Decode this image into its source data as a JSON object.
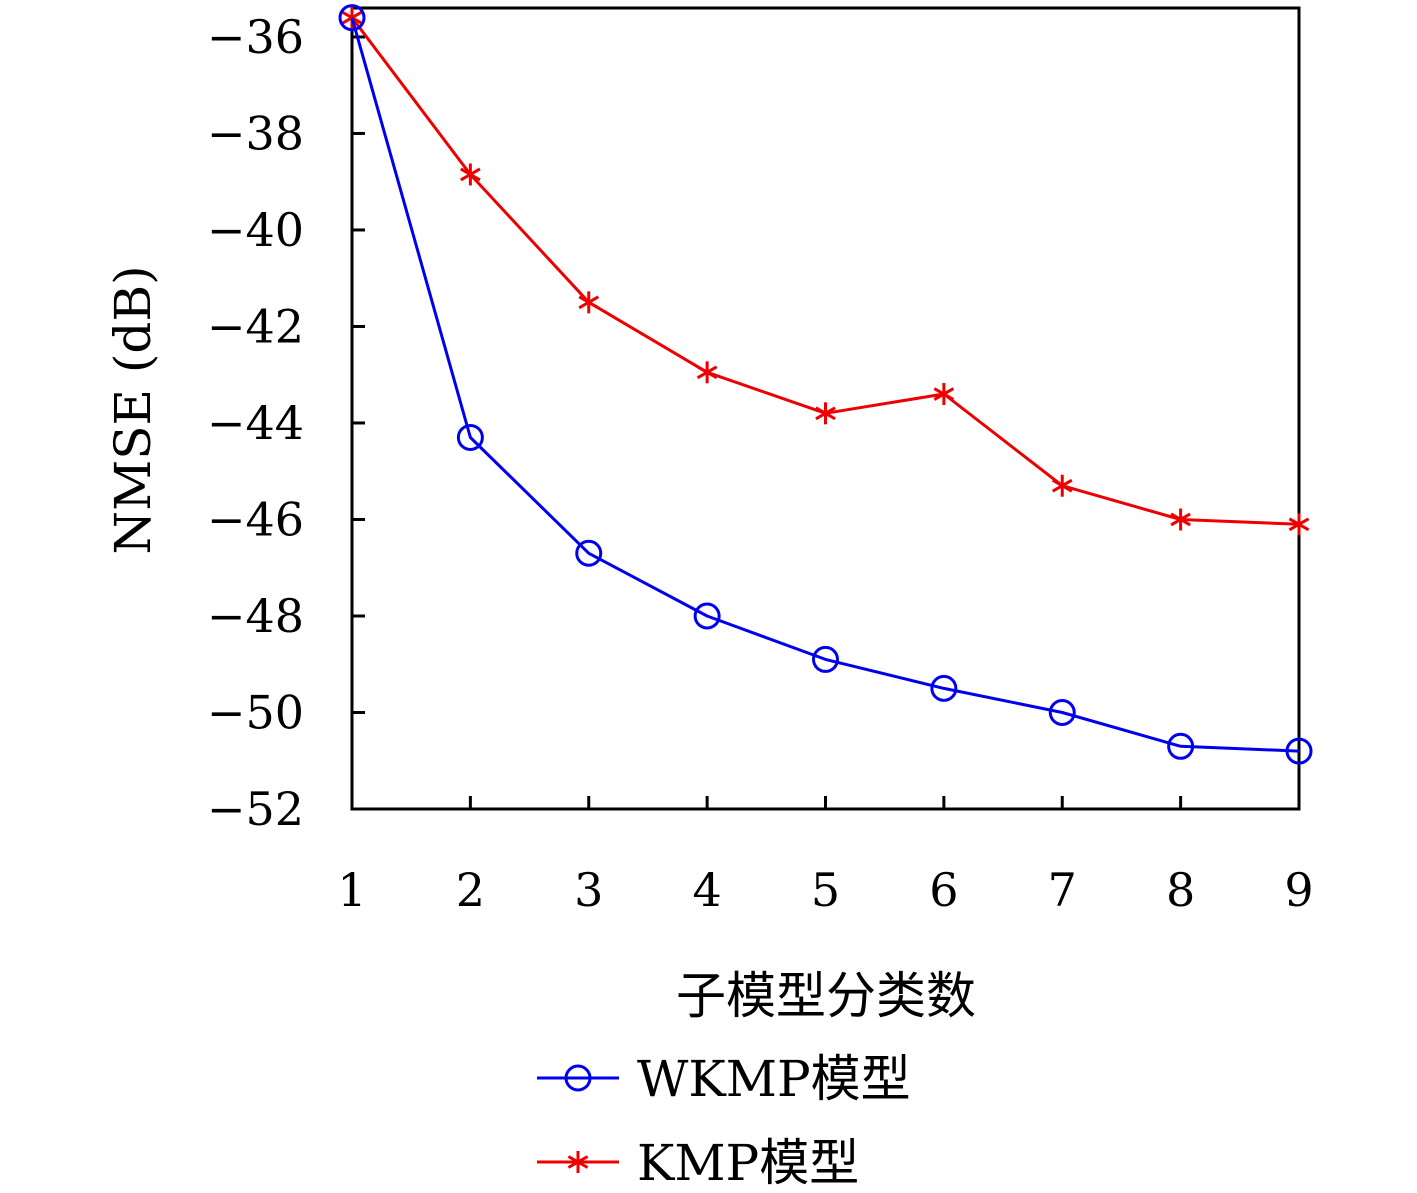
{
  "chart_data": {
    "type": "line",
    "title": "",
    "xlabel": "子模型分类数",
    "ylabel": "NMSE (dB)",
    "x": [
      1,
      2,
      3,
      4,
      5,
      6,
      7,
      8,
      9
    ],
    "xlim": [
      1,
      9
    ],
    "ylim": [
      -52,
      -35.4
    ],
    "x_ticks": [
      1,
      2,
      3,
      4,
      5,
      6,
      7,
      8,
      9
    ],
    "y_ticks": [
      -36,
      -38,
      -40,
      -42,
      -44,
      -46,
      -48,
      -50,
      -52
    ],
    "x_tick_labels": [
      "1",
      "2",
      "3",
      "4",
      "5",
      "6",
      "7",
      "8",
      "9"
    ],
    "y_tick_labels": [
      "−36",
      "−38",
      "−40",
      "−42",
      "−44",
      "−46",
      "−48",
      "−50",
      "−52"
    ],
    "grid": false,
    "legend_position": "bottom-center",
    "series": [
      {
        "name": "WKMP模型",
        "color": "#0000ee",
        "marker": "circle",
        "values": [
          -35.6,
          -44.3,
          -46.7,
          -48.0,
          -48.9,
          -49.5,
          -50.0,
          -50.7,
          -50.8
        ]
      },
      {
        "name": "KMP模型",
        "color": "#ee0000",
        "marker": "asterisk",
        "values": [
          -35.6,
          -38.85,
          -41.5,
          -42.95,
          -43.8,
          -43.4,
          -45.3,
          -46.0,
          -46.1
        ]
      }
    ]
  }
}
